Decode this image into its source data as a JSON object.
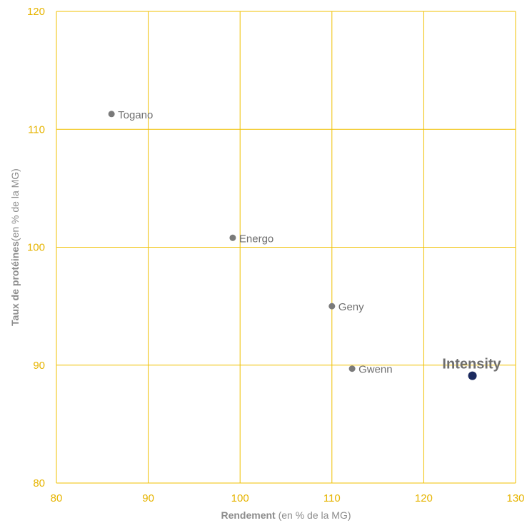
{
  "chart_data": {
    "type": "scatter",
    "xlabel": {
      "bold": "Rendement",
      "rest": " (en % de la MG)"
    },
    "ylabel": {
      "bold": "Taux de protéines",
      "rest": "(en % de la MG)"
    },
    "xlim": [
      80,
      130
    ],
    "ylim": [
      80,
      120
    ],
    "xticks": [
      "80",
      "90",
      "100",
      "110",
      "120",
      "130"
    ],
    "yticks": [
      "80",
      "90",
      "100",
      "110",
      "120"
    ],
    "grid": true,
    "colors": {
      "grid": "#f0c000",
      "tick_label": "#e6b400",
      "point": "#7a7a7a",
      "highlight": "#1b2a5e"
    },
    "points": [
      {
        "name": "Togano",
        "x": 86,
        "y": 111.3,
        "highlight": false
      },
      {
        "name": "Energo",
        "x": 99.2,
        "y": 100.8,
        "highlight": false
      },
      {
        "name": "Geny",
        "x": 110,
        "y": 95,
        "highlight": false
      },
      {
        "name": "Gwenn",
        "x": 112.2,
        "y": 89.7,
        "highlight": false
      },
      {
        "name": "Intensity",
        "x": 125.3,
        "y": 89.1,
        "highlight": true
      }
    ]
  }
}
